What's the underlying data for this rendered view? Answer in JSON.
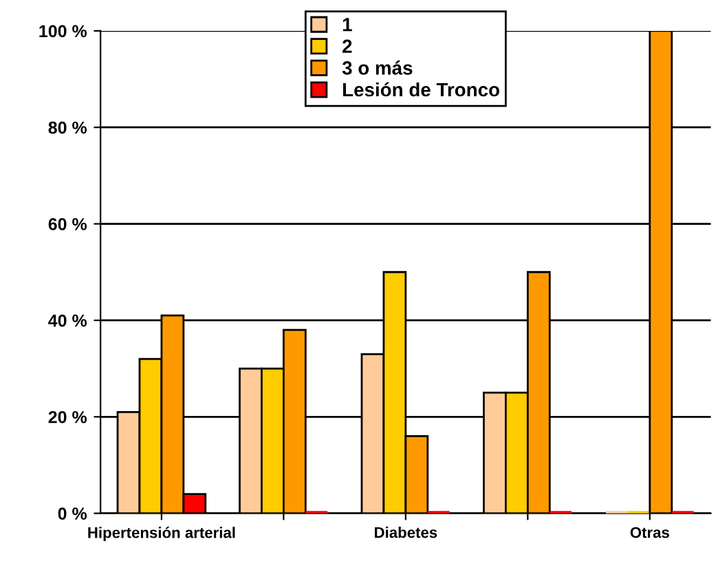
{
  "chart_data": {
    "type": "bar",
    "categories": [
      "Hipertensión arterial",
      null,
      "Diabetes",
      null,
      "Otras"
    ],
    "series": [
      {
        "name": "1",
        "color": "#ffcc99",
        "values": [
          21,
          30,
          33,
          25,
          0
        ]
      },
      {
        "name": "2",
        "color": "#ffcc00",
        "values": [
          32,
          30,
          50,
          25,
          0
        ]
      },
      {
        "name": "3 o más",
        "color": "#ff9900",
        "values": [
          41,
          38,
          16,
          50,
          100
        ]
      },
      {
        "name": "Lesión de Tronco",
        "color": "#ff0000",
        "values": [
          4,
          0,
          0,
          0,
          0
        ]
      }
    ],
    "ylim": [
      0,
      100
    ],
    "yticks": [
      {
        "value": 0,
        "label": "0 %"
      },
      {
        "value": 20,
        "label": "20 %"
      },
      {
        "value": 40,
        "label": "40 %"
      },
      {
        "value": 60,
        "label": "60 %"
      },
      {
        "value": 80,
        "label": "80 %"
      },
      {
        "value": 100,
        "label": "100 %"
      }
    ],
    "grid": "y",
    "legend": "top"
  }
}
